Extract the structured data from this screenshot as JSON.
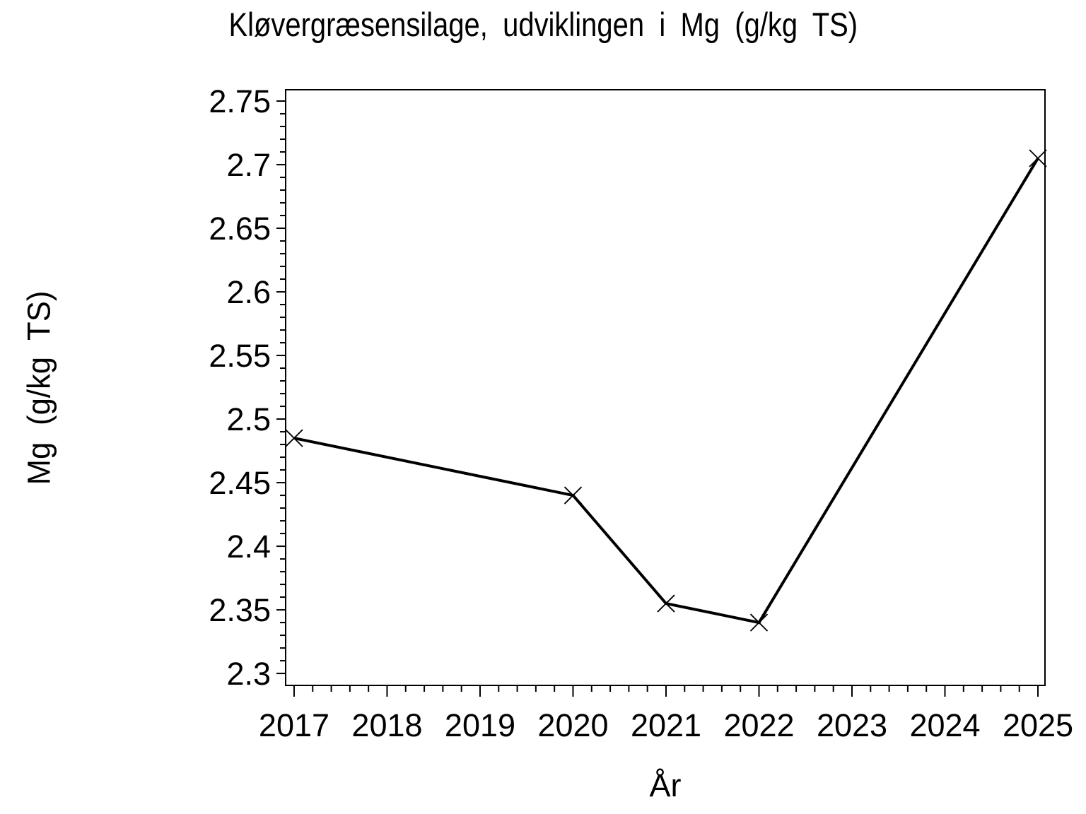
{
  "page": {
    "background": "#ffffff",
    "foreground": "#000000"
  },
  "chart_data": {
    "type": "line",
    "title": "Kløvergræsensilage, udviklingen i Mg (g/kg TS)",
    "xlabel": "År",
    "ylabel": "Mg (g/kg TS)",
    "series": [
      {
        "name": "Mg (g/kg TS)",
        "x": [
          2017,
          2020,
          2021,
          2022,
          2025
        ],
        "y": [
          2.485,
          2.44,
          2.355,
          2.34,
          2.705
        ],
        "marker": "x",
        "color": "#000000"
      }
    ],
    "x_major_ticks": [
      2017,
      2018,
      2019,
      2020,
      2021,
      2022,
      2023,
      2024,
      2025
    ],
    "x_tick_labels": [
      "2017",
      "2018",
      "2019",
      "2020",
      "2021",
      "2022",
      "2023",
      "2024",
      "2025"
    ],
    "x_minor_step": 0.2,
    "y_major_ticks": [
      2.3,
      2.35,
      2.4,
      2.45,
      2.5,
      2.55,
      2.6,
      2.65,
      2.7,
      2.75
    ],
    "y_tick_labels": [
      "2.3",
      "2.35",
      "2.4",
      "2.45",
      "2.5",
      "2.55",
      "2.6",
      "2.65",
      "2.7",
      "2.75"
    ],
    "y_minor_step": 0.01,
    "xlim": [
      2016.909,
      2025.076
    ],
    "ylim": [
      2.2906,
      2.7589
    ],
    "grid": false,
    "legend_position": "none",
    "frame": true,
    "axis_color": "#000000",
    "line_color": "#000000",
    "background": "#ffffff"
  }
}
